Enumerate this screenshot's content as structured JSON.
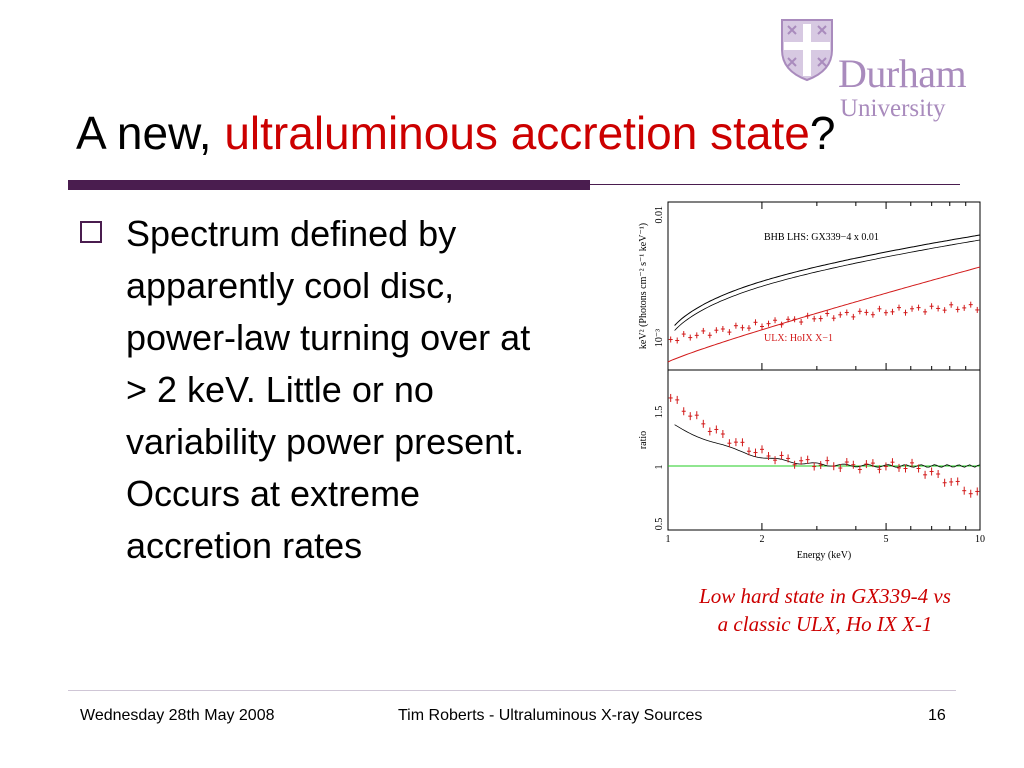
{
  "logo": {
    "word1": "Durham",
    "word2": "University",
    "color": "#a98bbd",
    "crest_icon": "crest-icon"
  },
  "title": {
    "prefix": "A new, ",
    "highlight": "ultraluminous accretion state",
    "suffix": "?"
  },
  "bullet": {
    "icon": "square-bullet-icon",
    "lines": [
      "Spectrum defined by",
      "apparently cool disc,",
      "power-law turning over at",
      "> 2 keV.  Little or no",
      "variability power present.",
      "Occurs at extreme",
      "accretion rates"
    ]
  },
  "figure": {
    "top_panel": {
      "ylabel": "keV² (Photons cm⁻² s⁻¹ keV⁻¹)",
      "ytick_labels": [
        "0.01",
        "10⁻³"
      ],
      "annotation_black": "BHB LHS: GX339−4 x 0.01",
      "annotation_red": "ULX: HoIX X−1"
    },
    "bottom_panel": {
      "ylabel": "ratio",
      "ytick_labels": [
        "1.5",
        "1",
        "0.5"
      ]
    },
    "xlabel": "Energy (keV)",
    "xtick_labels": [
      "1",
      "2",
      "5",
      "10"
    ],
    "colors": {
      "bhb": "#000000",
      "ulx": "#d21a1a",
      "reference_line": "#22cc22"
    }
  },
  "caption": {
    "line1": "Low hard state in GX339-4 vs",
    "line2": "a classic ULX, Ho IX X-1"
  },
  "footer": {
    "left": "Wednesday 28th May 2008",
    "center": "Tim Roberts - Ultraluminous X-ray Sources",
    "right": "16"
  },
  "colors": {
    "accent": "#4a1d4f",
    "highlight": "#cc0000"
  }
}
